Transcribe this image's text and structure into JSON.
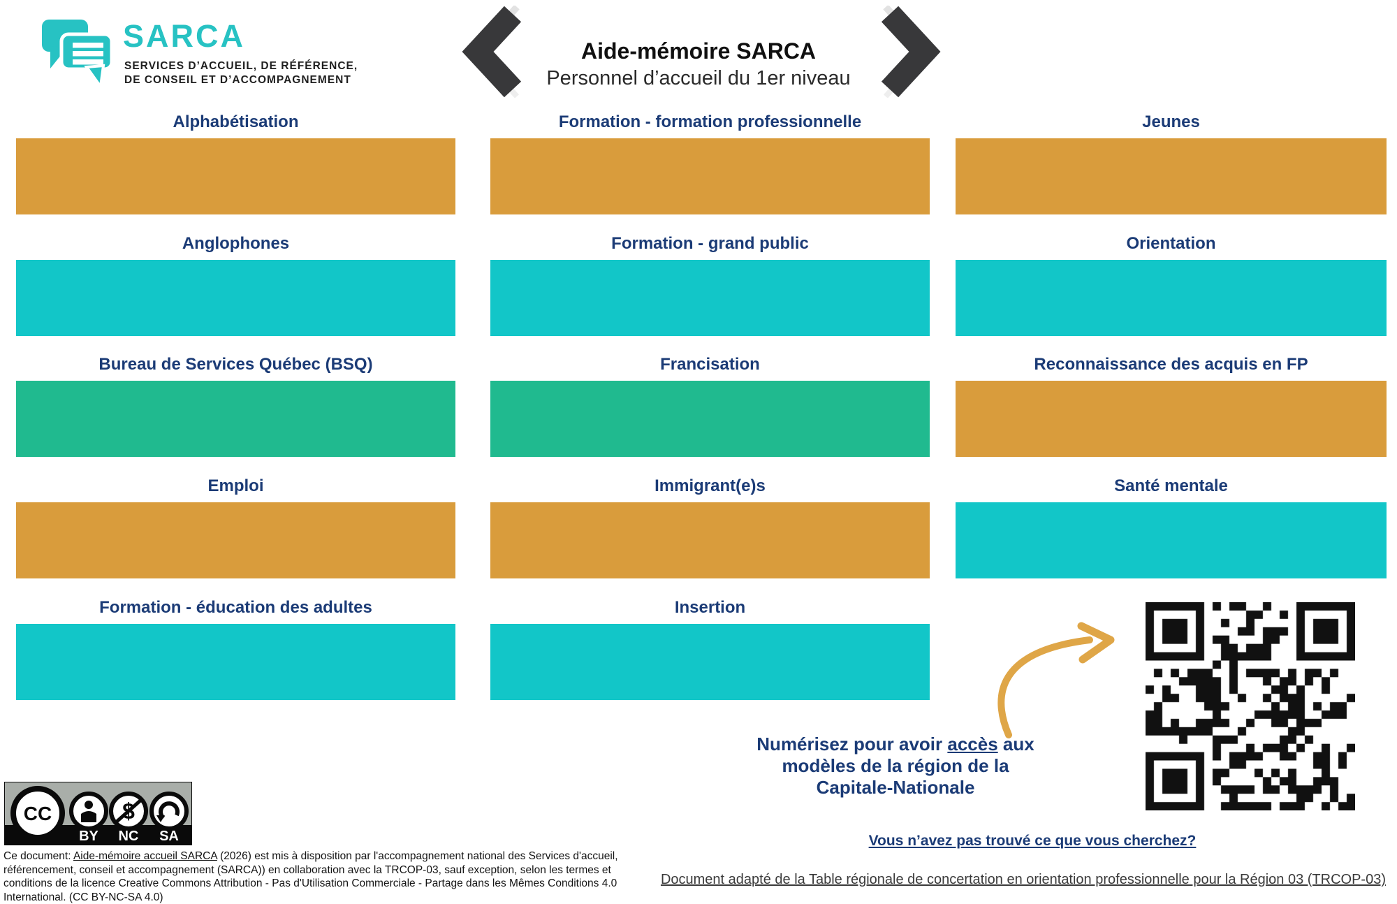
{
  "logo": {
    "name": "SARCA",
    "tagline1": "SERVICES D’ACCUEIL, DE RÉFÉRENCE,",
    "tagline2": "DE CONSEIL ET D’ACCOMPAGNEMENT"
  },
  "header": {
    "title": "Aide-mémoire SARCA",
    "subtitle": "Personnel d’accueil du 1er niveau"
  },
  "colors": {
    "orange": "#D99C3C",
    "cyan": "#12C6C8",
    "green": "#20BA8F",
    "navy": "#1B3B76",
    "logo_teal": "#27C2C3",
    "arrow_tan": "#DFA647",
    "chevron_dark": "#38383A"
  },
  "cards": [
    {
      "label": "Alphabétisation",
      "color": "orange"
    },
    {
      "label": "Anglophones",
      "color": "cyan"
    },
    {
      "label": "Bureau de Services Québec (BSQ)",
      "color": "green"
    },
    {
      "label": "Emploi",
      "color": "orange"
    },
    {
      "label": "Formation - éducation des adultes",
      "color": "cyan"
    },
    {
      "label": "Formation - formation professionnelle",
      "color": "orange"
    },
    {
      "label": "Formation - grand public",
      "color": "cyan"
    },
    {
      "label": "Francisation",
      "color": "green"
    },
    {
      "label": "Immigrant(e)s",
      "color": "orange"
    },
    {
      "label": "Insertion",
      "color": "cyan"
    },
    {
      "label": "Jeunes",
      "color": "orange"
    },
    {
      "label": "Orientation",
      "color": "cyan"
    },
    {
      "label": "Reconnaissance des acquis en FP",
      "color": "orange"
    },
    {
      "label": "Santé mentale",
      "color": "cyan"
    }
  ],
  "scan_note": {
    "line1_pre": "Numérisez pour avoir ",
    "line1_link": "accès",
    "line1_post": " aux",
    "line2": "modèles de la région de la",
    "line3": "Capitale-Nationale"
  },
  "footer": {
    "not_found_link": "Vous n’avez pas trouvé ce que vous cherchez?",
    "adapted_link": "Document adapté de la Table régionale de concertation en orientation professionnelle pour la Région 03 (TRCOP-03)",
    "license_pre": "Ce document: ",
    "license_link": "Aide-mémoire accueil SARCA",
    "license_post": " (2026) est mis à disposition par  l'accompagnement national des Services d'accueil, référencement, conseil et accompagnement (SARCA)) en collaboration avec la TRCOP-03, sauf exception, selon les termes et conditions de la licence Creative Commons Attribution - Pas d'Utilisation Commerciale - Partage dans les Mêmes Conditions 4.0 International. (CC BY-NC-SA 4.0)",
    "cc_labels": [
      "BY",
      "NC",
      "SA"
    ]
  }
}
